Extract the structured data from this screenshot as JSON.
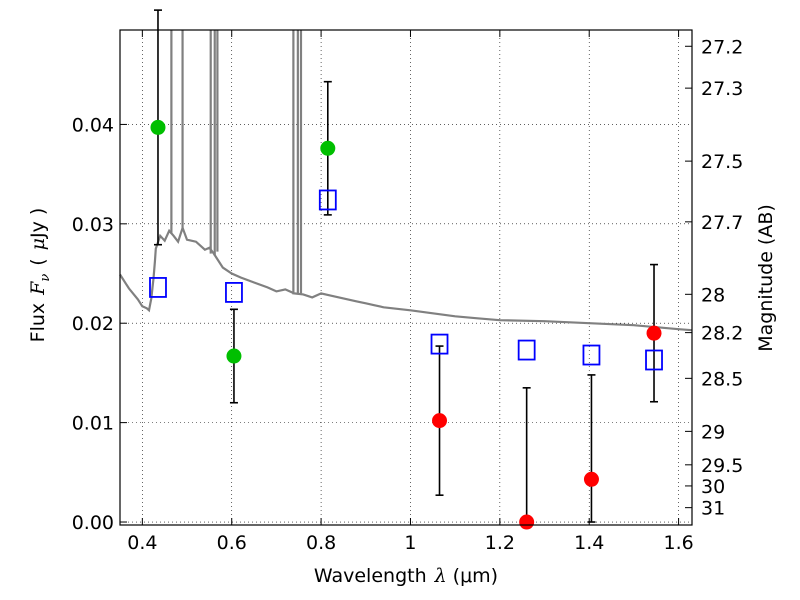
{
  "chart_data": {
    "type": "scatter",
    "xlabel": {
      "text": "Wavelength",
      "sym": "λ",
      "unit": "(μm)"
    },
    "ylabel": {
      "text": "Flux",
      "sym_main": "F",
      "sym_sub": "ν",
      "unit_open": "(",
      "unit_mu": "μ",
      "unit_rest": "Jy",
      "unit_close": ")"
    },
    "y2label": "Magnitude (AB)",
    "xlim": [
      0.35,
      1.63
    ],
    "ylim": [
      -0.0003,
      0.0495
    ],
    "x_ticks": [
      {
        "v": 0.4,
        "label": "0.4"
      },
      {
        "v": 0.6,
        "label": "0.6"
      },
      {
        "v": 0.8,
        "label": "0.8"
      },
      {
        "v": 1.0,
        "label": "1"
      },
      {
        "v": 1.2,
        "label": "1.2"
      },
      {
        "v": 1.4,
        "label": "1.4"
      },
      {
        "v": 1.6,
        "label": "1.6"
      }
    ],
    "y_ticks": [
      {
        "v": 0.0,
        "label": "0.00"
      },
      {
        "v": 0.01,
        "label": "0.01"
      },
      {
        "v": 0.02,
        "label": "0.02"
      },
      {
        "v": 0.03,
        "label": "0.03"
      },
      {
        "v": 0.04,
        "label": "0.04"
      }
    ],
    "mag_ticks": [
      {
        "mag": 27.2,
        "label": "27.2"
      },
      {
        "mag": 27.3,
        "label": "27.3"
      },
      {
        "mag": 27.5,
        "label": "27.5"
      },
      {
        "mag": 27.7,
        "label": "27.7"
      },
      {
        "mag": 28.0,
        "label": "28"
      },
      {
        "mag": 28.2,
        "label": "28.2"
      },
      {
        "mag": 28.5,
        "label": "28.5"
      },
      {
        "mag": 29.0,
        "label": "29"
      },
      {
        "mag": 29.5,
        "label": "29.5"
      },
      {
        "mag": 30.0,
        "label": "30"
      },
      {
        "mag": 31.0,
        "label": "31"
      }
    ],
    "grid": true,
    "series": [
      {
        "marker": "circle",
        "color": "#00bf00",
        "x": [
          0.435,
          0.605,
          0.815
        ],
        "y": [
          0.0397,
          0.0167,
          0.0376
        ],
        "yerr_low": [
          0.0118,
          0.0047,
          0.0067
        ],
        "yerr_high": [
          0.0118,
          0.0047,
          0.0067
        ]
      },
      {
        "marker": "circle",
        "color": "#ff0000",
        "x": [
          1.065,
          1.26,
          1.405,
          1.545
        ],
        "y": [
          0.0102,
          0.0,
          0.0043,
          0.019
        ],
        "yerr_low": [
          0.0075,
          0.0,
          0.0043,
          0.0069
        ],
        "yerr_high": [
          0.0075,
          0.0135,
          0.0105,
          0.0069
        ]
      },
      {
        "marker": "open-square",
        "color": "#0000ff",
        "x": [
          0.435,
          0.605,
          0.815,
          1.065,
          1.26,
          1.405,
          1.545
        ],
        "y": [
          0.0236,
          0.0231,
          0.0324,
          0.0179,
          0.0173,
          0.0168,
          0.0163
        ]
      }
    ],
    "model_spectrum": {
      "color": "#808080",
      "x": [
        0.35,
        0.37,
        0.39,
        0.4,
        0.41,
        0.415,
        0.42,
        0.425,
        0.428,
        0.43,
        0.44,
        0.45,
        0.46,
        0.47,
        0.48,
        0.49,
        0.5,
        0.52,
        0.54,
        0.55,
        0.56,
        0.58,
        0.6,
        0.62,
        0.65,
        0.68,
        0.7,
        0.72,
        0.74,
        0.76,
        0.78,
        0.8,
        0.82,
        0.85,
        0.88,
        0.9,
        0.92,
        0.94,
        0.96,
        0.98,
        1.0,
        1.05,
        1.1,
        1.15,
        1.2,
        1.3,
        1.4,
        1.5,
        1.55,
        1.6,
        1.63
      ],
      "y": [
        0.0249,
        0.0235,
        0.0224,
        0.0217,
        0.0215,
        0.0213,
        0.0225,
        0.0245,
        0.0262,
        0.0275,
        0.0288,
        0.0283,
        0.0293,
        0.0288,
        0.0282,
        0.0296,
        0.0284,
        0.0282,
        0.0274,
        0.0276,
        0.027,
        0.0256,
        0.025,
        0.0246,
        0.0241,
        0.0236,
        0.0232,
        0.0234,
        0.023,
        0.0229,
        0.0226,
        0.023,
        0.0228,
        0.0225,
        0.0222,
        0.022,
        0.0218,
        0.0216,
        0.0215,
        0.0214,
        0.0213,
        0.021,
        0.0207,
        0.0205,
        0.0203,
        0.0202,
        0.02,
        0.0198,
        0.0196,
        0.0194,
        0.0193
      ],
      "spikes": [
        {
          "x": 0.465,
          "top": 0.0495,
          "base": 0.029
        },
        {
          "x": 0.49,
          "top": 0.0495,
          "base": 0.0296
        },
        {
          "x": 0.553,
          "top": 0.0495,
          "base": 0.027
        },
        {
          "x": 0.562,
          "top": 0.0495,
          "base": 0.0268
        },
        {
          "x": 0.568,
          "top": 0.0495,
          "base": 0.0272
        },
        {
          "x": 0.738,
          "top": 0.0495,
          "base": 0.0229
        },
        {
          "x": 0.748,
          "top": 0.0495,
          "base": 0.0229
        },
        {
          "x": 0.755,
          "top": 0.0495,
          "base": 0.023
        }
      ]
    }
  }
}
